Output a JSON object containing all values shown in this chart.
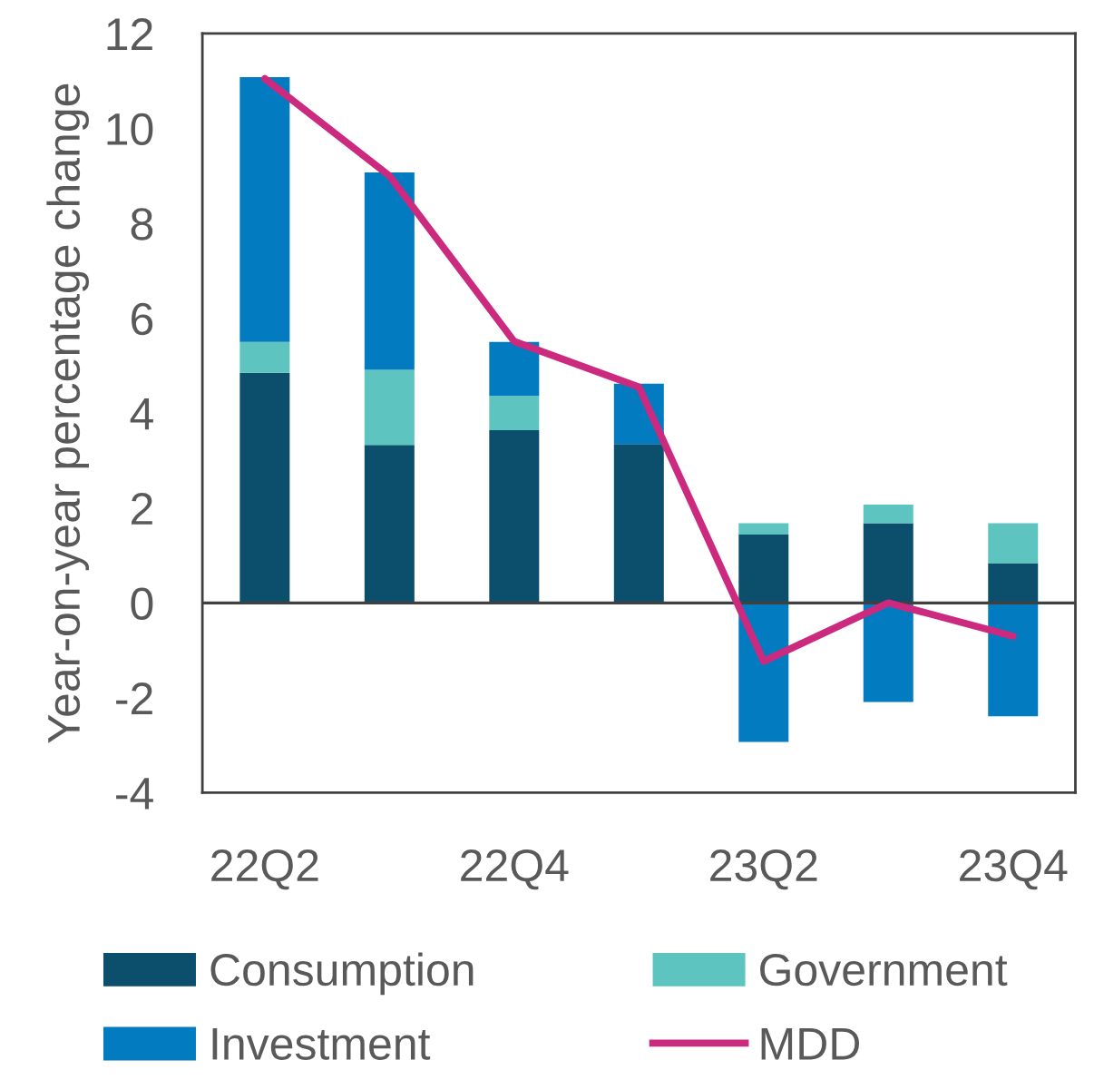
{
  "chart_data": {
    "type": "bar",
    "stacked": true,
    "ylabel": "Year-on-year percentage change",
    "categories": [
      "22Q2",
      null,
      "22Q4",
      null,
      "23Q2",
      null,
      "23Q4"
    ],
    "series": [
      {
        "name": "Consumption",
        "color": "#0b4f6c",
        "values": [
          4.85,
          3.33,
          3.64,
          3.35,
          1.44,
          1.68,
          0.84
        ]
      },
      {
        "name": "Government",
        "color": "#5ec4c0",
        "values": [
          0.65,
          1.58,
          0.72,
          null,
          0.24,
          0.39,
          0.84
        ]
      },
      {
        "name": "Investment",
        "color": "#027bc1",
        "values": [
          5.58,
          4.16,
          1.14,
          1.27,
          -2.93,
          -2.09,
          -2.39
        ]
      },
      {
        "name": "MDD",
        "type": "line",
        "color": "#cc2a7f",
        "values": [
          11.05,
          9.0,
          5.51,
          4.55,
          -1.23,
          0.0,
          -0.7
        ]
      }
    ],
    "ylim": [
      -4,
      12
    ],
    "yticks": [
      -4,
      -2,
      0,
      2,
      4,
      6,
      8,
      10,
      12
    ],
    "grid": false,
    "legend": "bottom",
    "line_style": "solid",
    "marker": "none",
    "ref_lines": [
      {
        "axis": "y",
        "value": 0,
        "color": "#404040"
      }
    ]
  }
}
